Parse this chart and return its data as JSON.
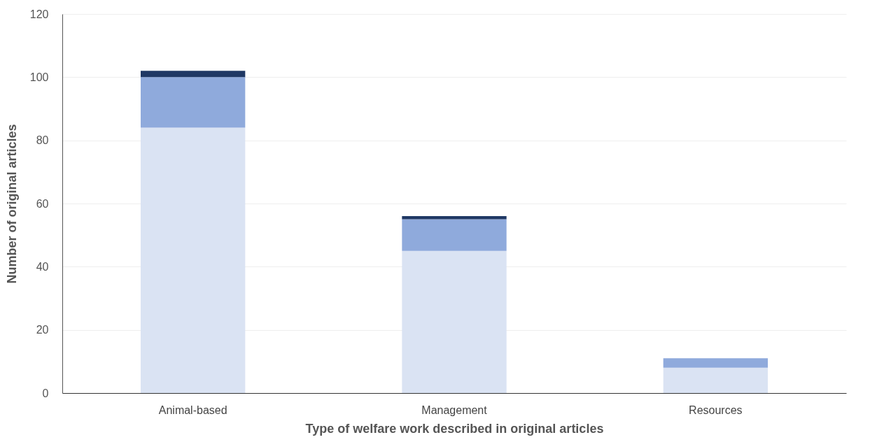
{
  "chart_data": {
    "type": "bar",
    "stacked": true,
    "xlabel": "Type of welfare work described in original articles",
    "ylabel": "Number of original articles",
    "categories": [
      "Animal-based",
      "Management",
      "Resources"
    ],
    "series": [
      {
        "color": "#dae3f3",
        "values": [
          84,
          45,
          8
        ]
      },
      {
        "color": "#8faadc",
        "values": [
          16,
          10,
          3
        ]
      },
      {
        "color": "#1f3864",
        "values": [
          2,
          1,
          0
        ]
      }
    ],
    "ylim": [
      0,
      120
    ],
    "yticks": [
      0,
      20,
      40,
      60,
      80,
      100,
      120
    ],
    "grid": "y",
    "legend": false
  }
}
